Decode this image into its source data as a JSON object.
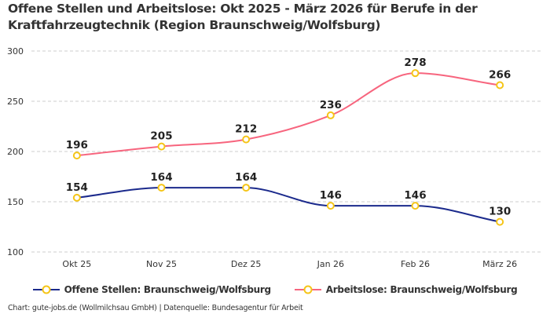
{
  "chart_data": {
    "type": "line",
    "title": "Offene Stellen und Arbeitslose: Okt 2025 - März 2026 für Berufe in der Kraftfahrzeugtechnik (Region Braunschweig/Wolfsburg)",
    "categories": [
      "Okt 25",
      "Nov 25",
      "Dez 25",
      "Jan 26",
      "Feb 26",
      "März 26"
    ],
    "ylim": [
      100,
      300
    ],
    "yticks": [
      100,
      150,
      200,
      250,
      300
    ],
    "grid": true,
    "legend_position": "bottom",
    "series": [
      {
        "name": "Offene Stellen: Braunschweig/Wolfsburg",
        "color": "#1b2a8c",
        "values": [
          154,
          164,
          164,
          146,
          146,
          130
        ]
      },
      {
        "name": "Arbeitslose: Braunschweig/Wolfsburg",
        "color": "#f7657e",
        "values": [
          196,
          205,
          212,
          236,
          278,
          266
        ]
      }
    ],
    "marker_color": "#f5c518"
  },
  "footer": "Chart: gute-jobs.de (Wollmilchsau GmbH) | Datenquelle: Bundesagentur für Arbeit"
}
